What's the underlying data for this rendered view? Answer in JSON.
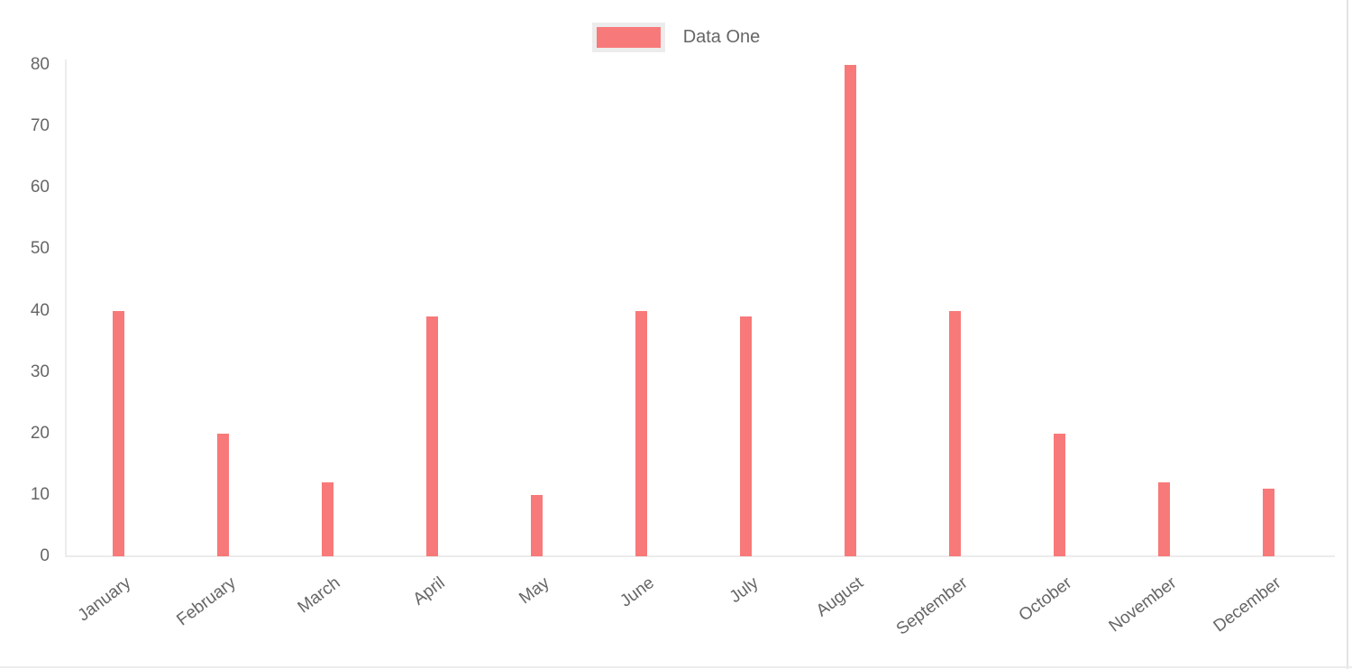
{
  "chart_data": {
    "type": "bar",
    "categories": [
      "January",
      "February",
      "March",
      "April",
      "May",
      "June",
      "July",
      "August",
      "September",
      "October",
      "November",
      "December"
    ],
    "series": [
      {
        "name": "Data One",
        "values": [
          40,
          20,
          12,
          39,
          10,
          40,
          39,
          80,
          40,
          20,
          12,
          11
        ],
        "color": "#f87979"
      }
    ],
    "title": "",
    "xlabel": "",
    "ylabel": "",
    "ylim": [
      0,
      80
    ],
    "y_ticks": [
      0,
      10,
      20,
      30,
      40,
      50,
      60,
      70,
      80
    ],
    "grid": "off",
    "legend_position": "top",
    "x_tick_rotation_deg": -37
  },
  "legend": {
    "label": "Data One",
    "swatch_color": "#f87979",
    "swatch_border_color": "#ececec"
  },
  "axes": {
    "text_color": "#666666",
    "line_color": "#ececec"
  }
}
